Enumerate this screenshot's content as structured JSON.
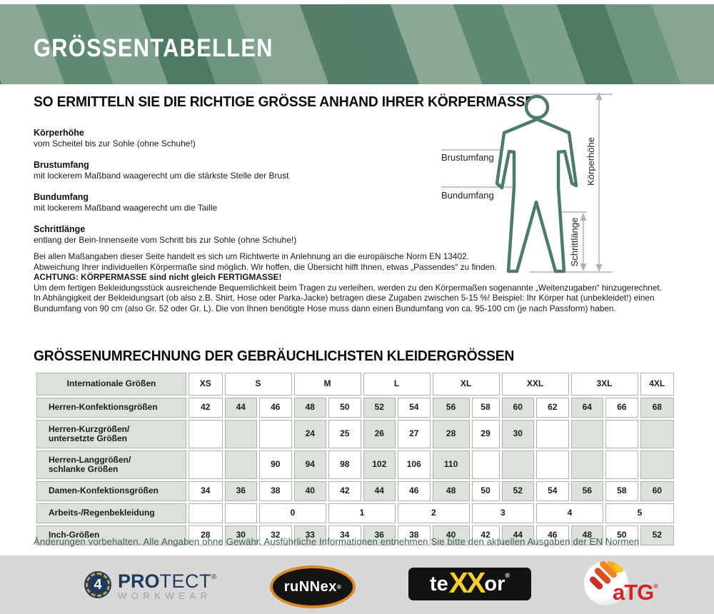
{
  "banner": {
    "title": "GRÖSSENTABELLEN"
  },
  "intro": {
    "heading": "SO ERMITTELN SIE DIE RICHTIGE GRÖSSE ANHAND IHRER KÖRPERMASSE",
    "measures": [
      {
        "label": "Körperhöhe",
        "desc": "vom Scheitel bis zur Sohle (ohne Schuhe!)"
      },
      {
        "label": "Brustumfang",
        "desc": "mit lockerem Maßband waagerecht um die stärkste Stelle der Brust"
      },
      {
        "label": "Bundumfang",
        "desc": "mit lockerem Maßband waagerecht um die Taille"
      },
      {
        "label": "Schrittlänge",
        "desc": "entlang der Bein-Innenseite vom Schritt bis zur Sohle (ohne Schuhe!)"
      }
    ],
    "note_lines": [
      "Bei allen Maßangaben dieser Seite handelt es sich um Richtwerte in Anlehnung an die europäische Norm EN 13402.",
      "Abweichung Ihrer individuellen Körpermaße sind möglich. Wir hoffen, die Übersicht hilft Ihnen, etwas „Passendes“ zu finden."
    ],
    "warning_bold": "ACHTUNG: KÖRPERMASSE sind nicht gleich FERTIGMASSE!",
    "warning_lines": [
      "Um dem fertigen Bekleidungsstück ausreichende Bequemlichkeit beim Tragen zu verleihen, werden zu den Körpermaßen sogenannte „Weitenzugaben“ hinzugerechnet.",
      "In Abhängigkeit der Bekleidungsart (ob also z.B. Shirt, Hose oder Parka-Jacke) betragen diese Zugaben zwischen 5-15 %! Beispiel: Ihr Körper hat (unbekleidet!) einen",
      "Bundumfang von 90 cm (also Gr. 52 oder Gr. L). Die von Ihnen benötigte Hose muss dann einen Bundumfang von ca. 95-100 cm (je nach Passform) haben."
    ]
  },
  "diagram": {
    "label_height": "Körperhöhe",
    "label_chest": "Brustumfang",
    "label_waist": "Bundumfang",
    "label_inseam": "Schrittlänge"
  },
  "size_table": {
    "title": "GRÖSSENUMRECHNUNG DER GEBRÄUCHLICHSTEN KLEIDERGRÖSSEN",
    "corner_label": "Internationale Größen",
    "column_groups": [
      {
        "label": "XS",
        "span": 1
      },
      {
        "label": "S",
        "span": 2
      },
      {
        "label": "M",
        "span": 2
      },
      {
        "label": "L",
        "span": 2
      },
      {
        "label": "XL",
        "span": 2
      },
      {
        "label": "XXL",
        "span": 2
      },
      {
        "label": "3XL",
        "span": 2
      },
      {
        "label": "4XL",
        "span": 1
      }
    ],
    "rows": [
      {
        "label_lines": [
          "Herren-Konfektionsgrößen"
        ],
        "cells": [
          {
            "v": "42"
          },
          {
            "v": "44"
          },
          {
            "v": "46"
          },
          {
            "v": "48"
          },
          {
            "v": "50"
          },
          {
            "v": "52"
          },
          {
            "v": "54"
          },
          {
            "v": "56"
          },
          {
            "v": "58"
          },
          {
            "v": "60"
          },
          {
            "v": "62"
          },
          {
            "v": "64"
          },
          {
            "v": "66"
          },
          {
            "v": "68"
          }
        ]
      },
      {
        "label_lines": [
          "Herren-Kurzgrößen/",
          "untersetzte Größen"
        ],
        "cells": [
          {
            "v": ""
          },
          {
            "v": ""
          },
          {
            "v": ""
          },
          {
            "v": "24"
          },
          {
            "v": "25"
          },
          {
            "v": "26"
          },
          {
            "v": "27"
          },
          {
            "v": "28"
          },
          {
            "v": "29"
          },
          {
            "v": "30"
          },
          {
            "v": ""
          },
          {
            "v": ""
          },
          {
            "v": ""
          },
          {
            "v": ""
          }
        ]
      },
      {
        "label_lines": [
          "Herren-Langgrößen/",
          "schlanke Größen"
        ],
        "cells": [
          {
            "v": ""
          },
          {
            "v": ""
          },
          {
            "v": "90"
          },
          {
            "v": "94"
          },
          {
            "v": "98"
          },
          {
            "v": "102"
          },
          {
            "v": "106"
          },
          {
            "v": "110"
          },
          {
            "v": ""
          },
          {
            "v": ""
          },
          {
            "v": ""
          },
          {
            "v": ""
          },
          {
            "v": ""
          },
          {
            "v": ""
          }
        ]
      },
      {
        "label_lines": [
          "Damen-Konfektionsgrößen"
        ],
        "cells": [
          {
            "v": "34"
          },
          {
            "v": "36"
          },
          {
            "v": "38"
          },
          {
            "v": "40"
          },
          {
            "v": "42"
          },
          {
            "v": "44"
          },
          {
            "v": "46"
          },
          {
            "v": "48"
          },
          {
            "v": "50"
          },
          {
            "v": "52"
          },
          {
            "v": "54"
          },
          {
            "v": "56"
          },
          {
            "v": "58"
          },
          {
            "v": "60"
          }
        ]
      },
      {
        "label_lines": [
          "Arbeits-/Regenbekleidung"
        ],
        "plain": true,
        "cells": [
          {
            "v": ""
          },
          {
            "v": ""
          },
          {
            "v": "0",
            "s": 2
          },
          {
            "v": "1",
            "s": 2
          },
          {
            "v": "2",
            "s": 2
          },
          {
            "v": "3",
            "s": 2
          },
          {
            "v": "4",
            "s": 2
          },
          {
            "v": "5",
            "s": 2
          }
        ]
      },
      {
        "label_lines": [
          "Inch-Größen"
        ],
        "cells": [
          {
            "v": "28"
          },
          {
            "v": "30"
          },
          {
            "v": "32"
          },
          {
            "v": "33"
          },
          {
            "v": "34"
          },
          {
            "v": "36"
          },
          {
            "v": "38"
          },
          {
            "v": "40"
          },
          {
            "v": "42"
          },
          {
            "v": "44"
          },
          {
            "v": "46"
          },
          {
            "v": "48"
          },
          {
            "v": "50"
          },
          {
            "v": "52"
          }
        ]
      }
    ]
  },
  "footer": {
    "disclaimer": "Änderungen vorbehalten. Alle Angaben ohne Gewähr. Ausführliche Informationen entnehmen Sie bitte den aktuellen Ausgaben der EN Normen"
  },
  "logos": {
    "protect": {
      "badge": "4",
      "name_bold": "PRO",
      "name_light": "TECT",
      "reg": "®",
      "sub": "WORKWEAR"
    },
    "runnex": {
      "name": "ruNNex",
      "reg": "®"
    },
    "texxor": {
      "pre": "te",
      "mid": "XX",
      "post": "or",
      "reg": "®"
    },
    "atg": {
      "name": "aTG",
      "reg": "®"
    }
  },
  "colors": {
    "banner_dark": "#4e7a64",
    "banner_light": "#8ba894",
    "figure_green": "#4d7c66",
    "measure_line_gray": "#b2b2b2",
    "table_cell_green": "#dbe2d9",
    "table_border": "#aab4a9",
    "footer_text_green": "#3f6156",
    "strip_bg": "#d8d8d6",
    "protect_navy": "#1f3a5e",
    "protect_gold": "#c9a233",
    "runnex_orange": "#d9882a",
    "texxor_yellow": "#f2d02e",
    "atg_red": "#d2232a"
  }
}
